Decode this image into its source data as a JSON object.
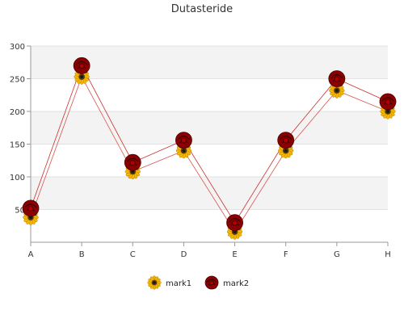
{
  "chart_data": {
    "type": "line",
    "title": "Dutasteride",
    "xlabel": "",
    "ylabel": "",
    "categories": [
      "A",
      "B",
      "C",
      "D",
      "E",
      "F",
      "G",
      "H"
    ],
    "y_ticks": [
      50,
      100,
      150,
      200,
      250,
      300
    ],
    "ylim": [
      0,
      300
    ],
    "grid": "horizontal alternating bands",
    "legend_position": "bottom",
    "series": [
      {
        "name": "mark1",
        "values": [
          38,
          253,
          108,
          140,
          16,
          140,
          232,
          200
        ],
        "marker": "sunflower-icon",
        "color": "#d9534f"
      },
      {
        "name": "mark2",
        "values": [
          52,
          270,
          122,
          156,
          30,
          156,
          250,
          215
        ],
        "marker": "rose-icon",
        "color": "#c9302c"
      }
    ]
  }
}
